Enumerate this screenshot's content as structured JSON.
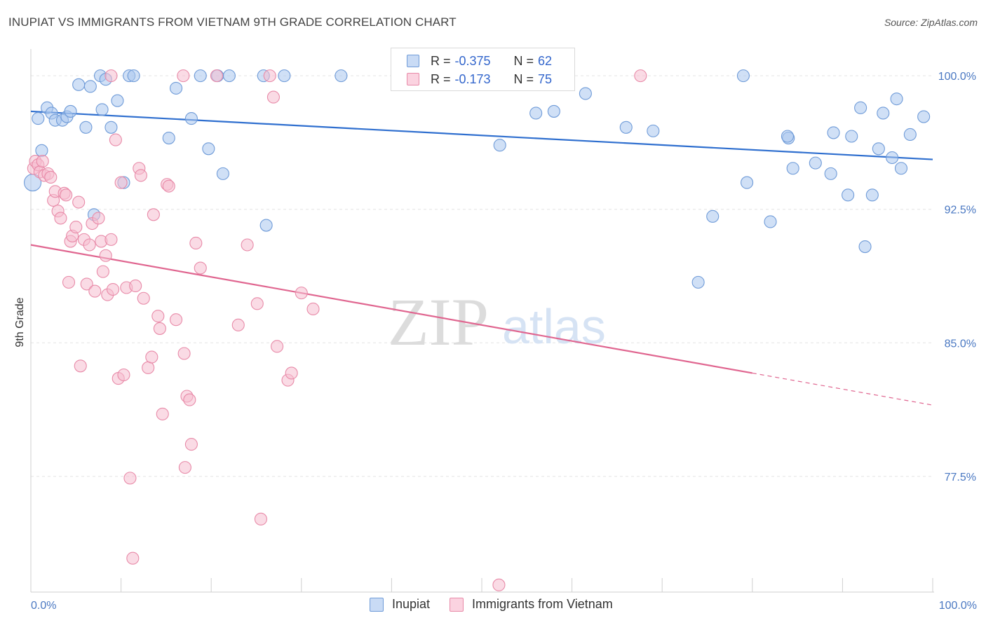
{
  "header": {
    "title": "INUPIAT VS IMMIGRANTS FROM VIETNAM 9TH GRADE CORRELATION CHART",
    "source": "Source: ZipAtlas.com"
  },
  "watermark": {
    "zip": "ZIP",
    "atlas": "atlas"
  },
  "legend": {
    "r_label": "R =",
    "n_label": "N =",
    "rows": [
      {
        "name": "Inupiat",
        "r": "-0.375",
        "n": "62"
      },
      {
        "name": "Immigrants from Vietnam",
        "r": "-0.173",
        "n": "75"
      }
    ]
  },
  "colors": {
    "blue_fill": "#a9c6ee",
    "blue_stroke": "#6f9bd8",
    "blue_line": "#2f6fcf",
    "pink_fill": "#f6bed0",
    "pink_stroke": "#e88aa8",
    "pink_line": "#e06690",
    "tick_text": "#4a78c2",
    "grid": "#e3e3e3"
  },
  "chart_data": {
    "type": "scatter",
    "title": "INUPIAT VS IMMIGRANTS FROM VIETNAM 9TH GRADE CORRELATION CHART",
    "xlabel": "",
    "ylabel": "9th Grade",
    "xlim": [
      0,
      100
    ],
    "ylim": [
      71,
      101.5
    ],
    "x_tick_labels": [
      {
        "value": 0,
        "label": "0.0%"
      },
      {
        "value": 100,
        "label": "100.0%"
      }
    ],
    "y_tick_labels": [
      {
        "value": 100,
        "label": "100.0%"
      },
      {
        "value": 92.5,
        "label": "92.5%"
      },
      {
        "value": 85,
        "label": "85.0%"
      },
      {
        "value": 77.5,
        "label": "77.5%"
      }
    ],
    "series": [
      {
        "name": "Inupiat",
        "color": "blue",
        "trend": {
          "x0": 0,
          "y0": 98.0,
          "x1": 100,
          "y1": 95.3
        },
        "points": [
          [
            0.2,
            94.0
          ],
          [
            1.2,
            95.8
          ],
          [
            0.8,
            97.6
          ],
          [
            1.8,
            98.2
          ],
          [
            2.3,
            97.9
          ],
          [
            2.7,
            97.5
          ],
          [
            3.5,
            97.5
          ],
          [
            4.0,
            97.7
          ],
          [
            4.4,
            98.0
          ],
          [
            5.3,
            99.5
          ],
          [
            6.1,
            97.1
          ],
          [
            6.6,
            99.4
          ],
          [
            7.0,
            92.2
          ],
          [
            7.9,
            98.1
          ],
          [
            7.7,
            100.0
          ],
          [
            8.3,
            99.8
          ],
          [
            8.9,
            97.1
          ],
          [
            9.6,
            98.6
          ],
          [
            10.3,
            94.0
          ],
          [
            10.9,
            100.0
          ],
          [
            11.4,
            100.0
          ],
          [
            15.3,
            96.5
          ],
          [
            16.1,
            99.3
          ],
          [
            18.8,
            100.0
          ],
          [
            19.7,
            95.9
          ],
          [
            20.7,
            100.0
          ],
          [
            21.3,
            94.5
          ],
          [
            22.0,
            100.0
          ],
          [
            25.8,
            100.0
          ],
          [
            26.1,
            91.6
          ],
          [
            28.1,
            100.0
          ],
          [
            34.4,
            100.0
          ],
          [
            52.0,
            96.1
          ],
          [
            56.0,
            97.9
          ],
          [
            58.0,
            98.0
          ],
          [
            66.0,
            97.1
          ],
          [
            69.0,
            96.9
          ],
          [
            74.0,
            88.4
          ],
          [
            75.6,
            92.1
          ],
          [
            79.0,
            100.0
          ],
          [
            79.4,
            94.0
          ],
          [
            82.0,
            91.8
          ],
          [
            84.0,
            96.5
          ],
          [
            84.5,
            94.8
          ],
          [
            87.0,
            95.1
          ],
          [
            88.7,
            94.5
          ],
          [
            89.0,
            96.8
          ],
          [
            90.6,
            93.3
          ],
          [
            91.0,
            96.6
          ],
          [
            92.0,
            98.2
          ],
          [
            92.5,
            90.4
          ],
          [
            93.3,
            93.3
          ],
          [
            94.0,
            95.9
          ],
          [
            94.5,
            97.9
          ],
          [
            95.5,
            95.4
          ],
          [
            96.0,
            98.7
          ],
          [
            96.5,
            94.8
          ],
          [
            97.5,
            96.7
          ],
          [
            99.0,
            97.7
          ],
          [
            83.9,
            96.6
          ],
          [
            17.8,
            97.6
          ],
          [
            61.5,
            99.0
          ]
        ]
      },
      {
        "name": "Immigrants from Vietnam",
        "color": "pink",
        "trend": {
          "x0": 0,
          "y0": 90.5,
          "x1": 80,
          "y1": 83.3,
          "dash_to": {
            "x": 100,
            "y": 81.5
          }
        },
        "points": [
          [
            0.3,
            94.8
          ],
          [
            0.5,
            95.2
          ],
          [
            0.8,
            95.0
          ],
          [
            1.0,
            94.6
          ],
          [
            1.3,
            95.2
          ],
          [
            1.5,
            94.4
          ],
          [
            1.9,
            94.5
          ],
          [
            2.2,
            94.3
          ],
          [
            2.5,
            93.0
          ],
          [
            2.7,
            93.5
          ],
          [
            3.0,
            92.4
          ],
          [
            3.3,
            92.0
          ],
          [
            3.7,
            93.4
          ],
          [
            3.9,
            93.3
          ],
          [
            4.2,
            88.4
          ],
          [
            4.4,
            90.7
          ],
          [
            4.6,
            91.0
          ],
          [
            5.0,
            91.5
          ],
          [
            5.3,
            92.9
          ],
          [
            5.5,
            83.7
          ],
          [
            5.9,
            90.8
          ],
          [
            6.2,
            88.3
          ],
          [
            6.5,
            90.5
          ],
          [
            6.8,
            91.7
          ],
          [
            7.1,
            87.9
          ],
          [
            7.5,
            92.0
          ],
          [
            7.8,
            90.7
          ],
          [
            8.0,
            89.0
          ],
          [
            8.3,
            89.9
          ],
          [
            8.5,
            87.7
          ],
          [
            8.9,
            90.8
          ],
          [
            9.1,
            88.0
          ],
          [
            9.4,
            96.4
          ],
          [
            9.7,
            83.0
          ],
          [
            10.0,
            94.0
          ],
          [
            10.3,
            83.2
          ],
          [
            10.6,
            88.1
          ],
          [
            11.0,
            77.4
          ],
          [
            11.3,
            72.9
          ],
          [
            11.6,
            88.2
          ],
          [
            12.0,
            94.8
          ],
          [
            12.2,
            94.4
          ],
          [
            12.5,
            87.5
          ],
          [
            13.0,
            83.6
          ],
          [
            13.4,
            84.2
          ],
          [
            13.6,
            92.2
          ],
          [
            14.1,
            86.5
          ],
          [
            14.3,
            85.8
          ],
          [
            14.6,
            81.0
          ],
          [
            15.1,
            93.9
          ],
          [
            16.1,
            86.3
          ],
          [
            17.0,
            84.4
          ],
          [
            17.3,
            82.0
          ],
          [
            17.6,
            81.8
          ],
          [
            17.8,
            79.3
          ],
          [
            17.1,
            78.0
          ],
          [
            18.3,
            90.6
          ],
          [
            18.8,
            89.2
          ],
          [
            20.6,
            100.0
          ],
          [
            23.0,
            86.0
          ],
          [
            24.0,
            90.5
          ],
          [
            25.1,
            87.2
          ],
          [
            25.5,
            75.1
          ],
          [
            26.5,
            100.0
          ],
          [
            26.9,
            98.8
          ],
          [
            27.3,
            84.8
          ],
          [
            28.5,
            82.9
          ],
          [
            28.9,
            83.3
          ],
          [
            30.0,
            87.8
          ],
          [
            31.3,
            86.9
          ],
          [
            15.3,
            93.8
          ],
          [
            16.9,
            100.0
          ],
          [
            51.9,
            71.4
          ],
          [
            67.6,
            100.0
          ],
          [
            8.9,
            100.0
          ]
        ]
      }
    ]
  }
}
